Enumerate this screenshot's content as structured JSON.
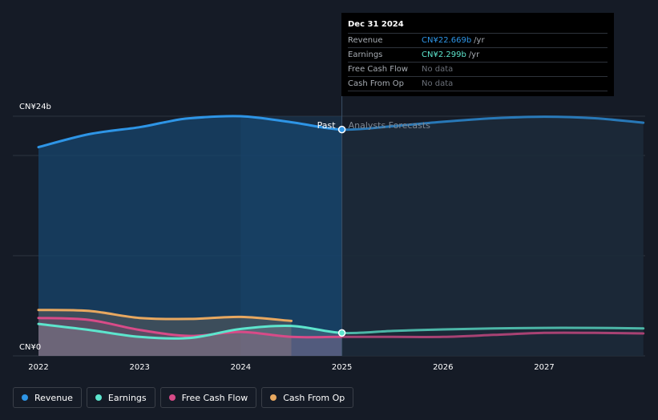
{
  "chart_data": {
    "type": "line",
    "currency": "CN¥",
    "y_tick_labels": [
      "CN¥24b",
      "CN¥0"
    ],
    "ylim": [
      0,
      24
    ],
    "x_tick_labels": [
      "2022",
      "2023",
      "2024",
      "2025",
      "2026",
      "2027"
    ],
    "xlim": [
      2021.75,
      2027.98
    ],
    "divider_x": 2025.0,
    "past_label": "Past",
    "forecast_label": "Analysts Forecasts",
    "series": [
      {
        "name": "Revenue",
        "color": "#2e95e6",
        "x": [
          2022.0,
          2022.5,
          2023.0,
          2023.25,
          2023.5,
          2024.0,
          2024.5,
          2025.0,
          2025.5,
          2026.0,
          2026.5,
          2027.0,
          2027.5,
          2027.98
        ],
        "y": [
          20.9,
          22.2,
          22.9,
          23.4,
          23.8,
          24.0,
          23.4,
          22.669,
          23.0,
          23.45,
          23.8,
          23.95,
          23.8,
          23.35
        ]
      },
      {
        "name": "Earnings",
        "color": "#5de5cd",
        "x": [
          2022.0,
          2022.5,
          2023.0,
          2023.5,
          2024.0,
          2024.5,
          2025.0,
          2025.5,
          2026.0,
          2026.5,
          2027.0,
          2027.5,
          2027.98
        ],
        "y": [
          3.2,
          2.6,
          1.9,
          1.8,
          2.7,
          3.0,
          2.299,
          2.5,
          2.65,
          2.75,
          2.8,
          2.8,
          2.75
        ]
      },
      {
        "name": "Free Cash Flow",
        "color": "#d84b88",
        "x": [
          2022.0,
          2022.5,
          2023.0,
          2023.5,
          2024.0,
          2024.5,
          2025.0,
          2025.5,
          2026.0,
          2026.5,
          2027.0,
          2027.5,
          2027.98
        ],
        "y": [
          3.8,
          3.6,
          2.6,
          2.0,
          2.4,
          1.9,
          1.9,
          1.9,
          1.9,
          2.1,
          2.3,
          2.3,
          2.25
        ]
      },
      {
        "name": "Cash From Op",
        "color": "#e8a860",
        "x": [
          2022.0,
          2022.5,
          2023.0,
          2023.5,
          2024.0,
          2024.5
        ],
        "y": [
          4.6,
          4.5,
          3.8,
          3.7,
          3.9,
          3.5
        ]
      }
    ]
  },
  "tooltip": {
    "date": "Dec 31 2024",
    "rows": [
      {
        "label": "Revenue",
        "value": "CN¥22.669b",
        "unit": "/yr",
        "color": "#2e95e6"
      },
      {
        "label": "Earnings",
        "value": "CN¥2.299b",
        "unit": "/yr",
        "color": "#5de5cd"
      },
      {
        "label": "Free Cash Flow",
        "value": "No data",
        "unit": "",
        "color": ""
      },
      {
        "label": "Cash From Op",
        "value": "No data",
        "unit": "",
        "color": ""
      }
    ]
  },
  "legend": [
    {
      "label": "Revenue",
      "color": "#2e95e6"
    },
    {
      "label": "Earnings",
      "color": "#5de5cd"
    },
    {
      "label": "Free Cash Flow",
      "color": "#d84b88"
    },
    {
      "label": "Cash From Op",
      "color": "#e8a860"
    }
  ]
}
